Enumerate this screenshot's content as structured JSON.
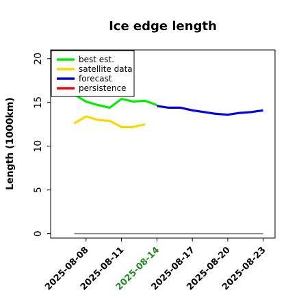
{
  "chart_data": {
    "type": "line",
    "title": "Ice edge length",
    "xlabel": "",
    "ylabel": "Length (1000km)",
    "xlim": [
      "2025-08-05",
      "2025-08-24"
    ],
    "ylim": [
      -0.5,
      21
    ],
    "yticks": [
      0,
      5,
      10,
      15,
      20
    ],
    "xticks": [
      "2025-08-08",
      "2025-08-11",
      "2025-08-14",
      "2025-08-17",
      "2025-08-20",
      "2025-08-23"
    ],
    "highlight_xtick": "2025-08-14",
    "highlight_color": "#228b22",
    "legend": {
      "position": "top-left"
    },
    "series": [
      {
        "name": "best est.",
        "color": "#00ee00",
        "x": [
          "2025-08-07",
          "2025-08-08",
          "2025-08-09",
          "2025-08-10",
          "2025-08-11",
          "2025-08-12",
          "2025-08-13",
          "2025-08-14"
        ],
        "y": [
          15.9,
          15.1,
          14.7,
          14.4,
          15.4,
          15.1,
          15.2,
          14.7
        ]
      },
      {
        "name": "satellite data",
        "color": "#ffd700",
        "x": [
          "2025-08-07",
          "2025-08-08",
          "2025-08-09",
          "2025-08-10",
          "2025-08-11",
          "2025-08-12",
          "2025-08-13"
        ],
        "y": [
          12.6,
          13.4,
          13.0,
          12.9,
          12.2,
          12.2,
          12.5
        ]
      },
      {
        "name": "forecast",
        "color": "#0000ee",
        "x": [
          "2025-08-14",
          "2025-08-15",
          "2025-08-16",
          "2025-08-17",
          "2025-08-18",
          "2025-08-19",
          "2025-08-20",
          "2025-08-21",
          "2025-08-22",
          "2025-08-23"
        ],
        "y": [
          14.6,
          14.4,
          14.4,
          14.1,
          13.9,
          13.7,
          13.6,
          13.8,
          13.9,
          14.1
        ]
      },
      {
        "name": "persistence",
        "color": "#ff0000",
        "x": [],
        "y": []
      }
    ],
    "zero_line": {
      "color": "#808080",
      "x": [
        "2025-08-07",
        "2025-08-23"
      ],
      "y": [
        0,
        0
      ]
    }
  }
}
